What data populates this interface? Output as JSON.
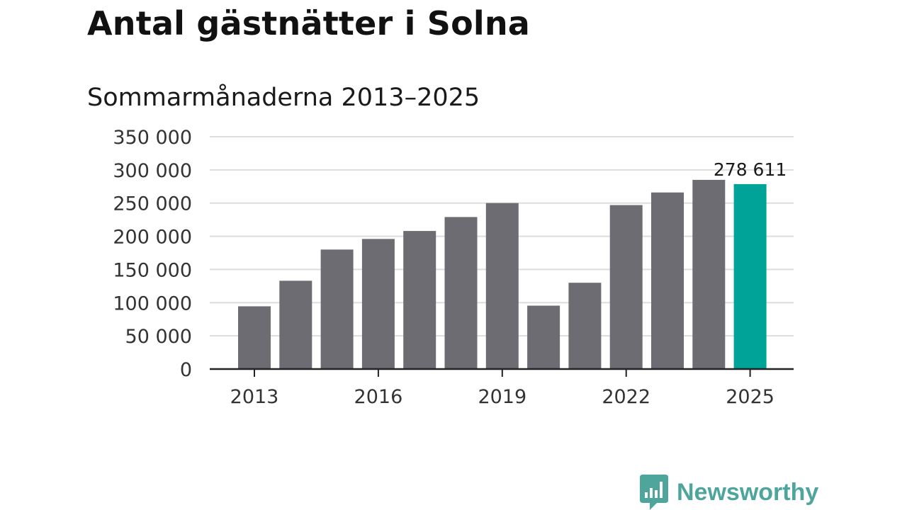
{
  "title": "Antal gästnätter i Solna",
  "subtitle": "Sommarmånaderna 2013–2025",
  "brand": {
    "name": "Newsworthy",
    "icon": "newsworthy-logo-icon",
    "color": "#4ea59c"
  },
  "colors": {
    "bar": "#6d6c72",
    "highlight": "#00a398",
    "grid": "#dddddd",
    "axis": "#222222"
  },
  "chart_data": {
    "type": "bar",
    "title": "",
    "xlabel": "",
    "ylabel": "",
    "categories": [
      "2013",
      "2014",
      "2015",
      "2016",
      "2017",
      "2018",
      "2019",
      "2020",
      "2021",
      "2022",
      "2023",
      "2024",
      "2025"
    ],
    "values": [
      94500,
      133000,
      180000,
      196000,
      208000,
      229000,
      250000,
      95500,
      130000,
      247000,
      266000,
      285000,
      278611
    ],
    "highlight_category": "2025",
    "ylim": [
      0,
      350000
    ],
    "yticks": [
      0,
      50000,
      100000,
      150000,
      200000,
      250000,
      300000,
      350000
    ],
    "ytick_labels": [
      "0",
      "50 000",
      "100 000",
      "150 000",
      "200 000",
      "250 000",
      "300 000",
      "350 000"
    ],
    "xtick_labels": [
      "2013",
      "2016",
      "2019",
      "2022",
      "2025"
    ],
    "data_labels": [
      {
        "category": "2025",
        "text": "278 611"
      }
    ],
    "grid": true,
    "legend": "none"
  }
}
